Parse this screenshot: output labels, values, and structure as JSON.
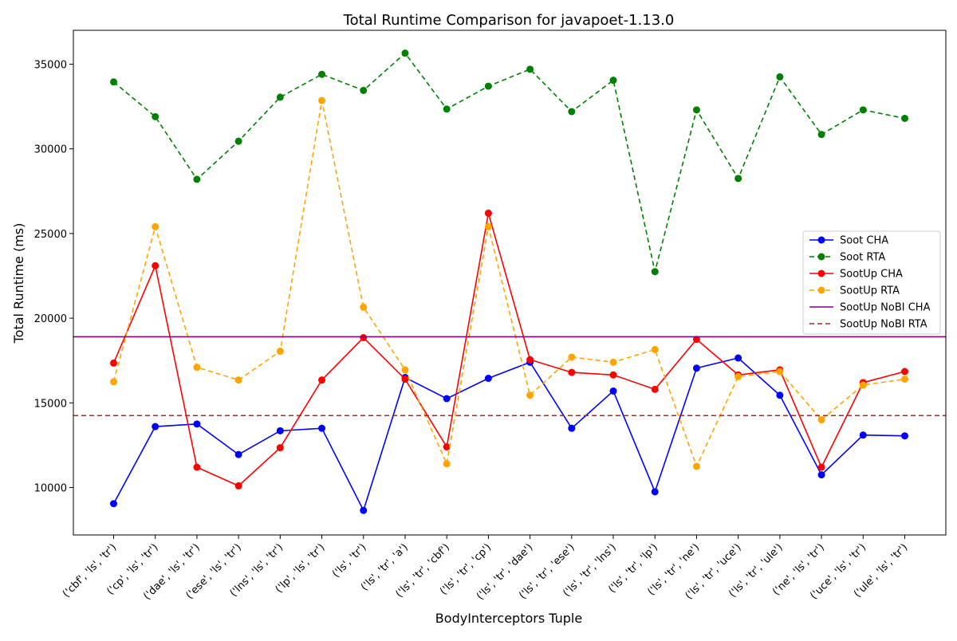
{
  "chart_data": {
    "type": "line",
    "title": "Total Runtime Comparison for javapoet-1.13.0",
    "xlabel": "BodyInterceptors Tuple",
    "ylabel": "Total Runtime (ms)",
    "ylim": [
      7200,
      37000
    ],
    "yticks": [
      10000,
      15000,
      20000,
      25000,
      30000,
      35000
    ],
    "grid": false,
    "legend_position": "center-right",
    "categories": [
      "('cbf', 'ls', 'tr')",
      "('cp', 'ls', 'tr')",
      "('dae', 'ls', 'tr')",
      "('ese', 'ls', 'tr')",
      "('lns', 'ls', 'tr')",
      "('lp', 'ls', 'tr')",
      "('ls', 'tr')",
      "('ls', 'tr', 'a')",
      "('ls', 'tr', 'cbf')",
      "('ls', 'tr', 'cp')",
      "('ls', 'tr', 'dae')",
      "('ls', 'tr', 'ese')",
      "('ls', 'tr', 'lns')",
      "('ls', 'tr', 'lp')",
      "('ls', 'tr', 'ne')",
      "('ls', 'tr', 'uce')",
      "('ls', 'tr', 'ule')",
      "('ne', 'ls', 'tr')",
      "('uce', 'ls', 'tr')",
      "('ule', 'ls', 'tr')"
    ],
    "series": [
      {
        "name": "Soot CHA",
        "color": "#0000ff",
        "style": "solid",
        "markers": true,
        "values": [
          9050,
          13600,
          13750,
          11950,
          13350,
          13500,
          8650,
          16500,
          15250,
          16450,
          17400,
          13500,
          15700,
          9750,
          17050,
          17650,
          15450,
          10750,
          13100,
          13050
        ]
      },
      {
        "name": "Soot RTA",
        "color": "#008000",
        "style": "dashed",
        "markers": true,
        "values": [
          33950,
          31900,
          28200,
          30450,
          33050,
          34400,
          33450,
          35650,
          32350,
          33700,
          34700,
          32200,
          34050,
          22750,
          32300,
          28250,
          34250,
          30850,
          32300,
          31800
        ]
      },
      {
        "name": "SootUp CHA",
        "color": "#ff0000",
        "style": "solid",
        "markers": true,
        "values": [
          17350,
          23100,
          11200,
          10100,
          12350,
          16350,
          18850,
          16400,
          12400,
          26200,
          17550,
          16800,
          16650,
          15800,
          18750,
          16650,
          16950,
          11200,
          16200,
          16850
        ]
      },
      {
        "name": "SootUp RTA",
        "color": "#ffa500",
        "style": "dashed",
        "markers": true,
        "values": [
          16250,
          25400,
          17100,
          16350,
          18050,
          32850,
          20650,
          16950,
          11400,
          25400,
          15450,
          17700,
          17400,
          18150,
          11250,
          16550,
          16850,
          14000,
          16050,
          16400
        ]
      },
      {
        "name": "SootUp NoBI CHA",
        "color": "#800080",
        "style": "solid",
        "markers": false,
        "hline": 18900
      },
      {
        "name": "SootUp NoBI RTA",
        "color": "#a52a2a",
        "style": "dashed",
        "markers": false,
        "hline": 14250
      }
    ]
  }
}
